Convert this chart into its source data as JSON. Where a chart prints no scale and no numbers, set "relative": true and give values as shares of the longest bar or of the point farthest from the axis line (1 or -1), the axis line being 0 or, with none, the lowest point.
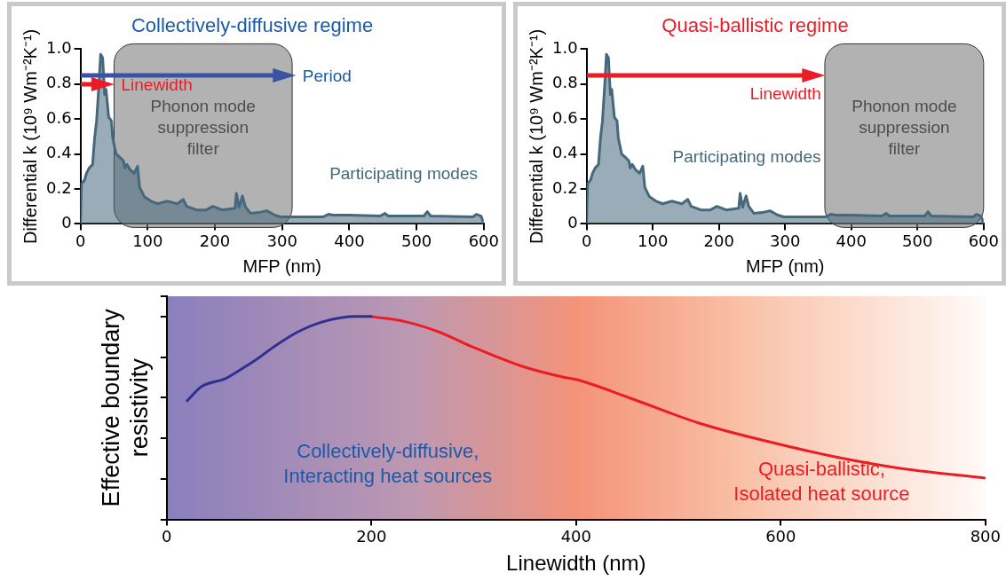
{
  "chart_data": [
    {
      "type": "area",
      "title": "Collectively-diffusive regime",
      "xlabel": "MFP (nm)",
      "ylabel": "Differential k (10⁹ Wm⁻²K⁻¹)",
      "x": [
        0,
        1.5,
        6,
        9,
        13,
        18,
        21,
        24,
        28,
        30,
        33,
        36,
        38,
        42,
        46,
        48,
        53,
        59,
        64,
        66,
        69,
        74,
        80,
        85,
        88,
        95,
        105,
        115,
        129,
        144,
        153,
        158,
        173,
        187,
        197,
        211,
        230,
        232,
        236,
        241,
        245,
        253,
        265,
        277,
        289,
        298,
        361,
        369,
        376,
        400,
        446,
        453,
        458,
        511,
        516,
        521,
        584,
        589,
        596,
        600
      ],
      "series": [
        {
          "name": "Participating modes",
          "color": "#46687c",
          "values": [
            0.005,
            0.23,
            0.25,
            0.29,
            0.32,
            0.34,
            0.49,
            0.59,
            0.83,
            0.97,
            0.95,
            0.74,
            0.77,
            0.61,
            0.59,
            0.49,
            0.4,
            0.38,
            0.36,
            0.32,
            0.34,
            0.31,
            0.29,
            0.33,
            0.21,
            0.155,
            0.13,
            0.115,
            0.13,
            0.115,
            0.14,
            0.1,
            0.08,
            0.08,
            0.1,
            0.08,
            0.09,
            0.175,
            0.095,
            0.16,
            0.1,
            0.06,
            0.065,
            0.075,
            0.05,
            0.04,
            0.04,
            0.055,
            0.05,
            0.05,
            0.045,
            0.06,
            0.045,
            0.045,
            0.07,
            0.045,
            0.04,
            0.055,
            0.045,
            0.005
          ]
        }
      ],
      "xlim": [
        0,
        600
      ],
      "xticks": [
        0,
        100,
        200,
        300,
        400,
        500,
        600
      ],
      "ylim": [
        0,
        1
      ],
      "yticks": [
        0,
        0.2,
        0.4,
        0.6,
        0.8,
        {
          "value": 1,
          "label": "1.0"
        }
      ],
      "grid": false,
      "legend": false,
      "bands": [
        {
          "axis": "x",
          "from": 50,
          "to": 315,
          "label": "Phonon mode suppression filter",
          "color": "#7f7f7f"
        }
      ],
      "annotations": [
        {
          "text": "Period",
          "x": 320,
          "y": 0.85
        },
        {
          "text": "Linewidth",
          "x": 50,
          "y": 0.8
        }
      ]
    },
    {
      "type": "area",
      "title": "Quasi-ballistic regime",
      "xlabel": "MFP (nm)",
      "ylabel": "Differential k (10⁹ Wm⁻²K⁻¹)",
      "x": [
        0,
        1.5,
        6,
        9,
        13,
        18,
        21,
        24,
        28,
        30,
        33,
        36,
        38,
        42,
        46,
        48,
        53,
        59,
        64,
        66,
        69,
        74,
        80,
        85,
        88,
        95,
        105,
        115,
        129,
        144,
        153,
        158,
        173,
        187,
        197,
        211,
        230,
        232,
        236,
        241,
        245,
        253,
        265,
        277,
        289,
        298,
        361,
        369,
        376,
        400,
        446,
        453,
        458,
        511,
        516,
        521,
        584,
        589,
        596,
        600
      ],
      "series": [
        {
          "name": "Participating modes",
          "color": "#46687c",
          "values": [
            0.005,
            0.23,
            0.25,
            0.29,
            0.32,
            0.34,
            0.49,
            0.59,
            0.83,
            0.97,
            0.95,
            0.74,
            0.77,
            0.61,
            0.59,
            0.49,
            0.4,
            0.38,
            0.36,
            0.32,
            0.34,
            0.31,
            0.29,
            0.33,
            0.21,
            0.155,
            0.13,
            0.115,
            0.13,
            0.115,
            0.14,
            0.1,
            0.08,
            0.08,
            0.1,
            0.08,
            0.09,
            0.175,
            0.095,
            0.16,
            0.1,
            0.06,
            0.065,
            0.075,
            0.05,
            0.04,
            0.04,
            0.055,
            0.05,
            0.05,
            0.045,
            0.06,
            0.045,
            0.045,
            0.07,
            0.045,
            0.04,
            0.055,
            0.045,
            0.005
          ]
        }
      ],
      "xlim": [
        0,
        600
      ],
      "xticks": [
        0,
        100,
        200,
        300,
        400,
        500,
        600
      ],
      "ylim": [
        0,
        1
      ],
      "yticks": [
        0,
        0.2,
        0.4,
        0.6,
        0.8,
        {
          "value": 1,
          "label": "1.0"
        }
      ],
      "grid": false,
      "legend": false,
      "bands": [
        {
          "axis": "x",
          "from": 360,
          "to": 600,
          "label": "Phonon mode suppression filter",
          "color": "#7f7f7f"
        }
      ],
      "annotations": [
        {
          "text": "Linewidth",
          "x": 360,
          "y": 0.85
        }
      ]
    },
    {
      "type": "line",
      "relative": true,
      "xlabel": "Linewidth (nm)",
      "ylabel": "Effective boundary resistivity",
      "series": [
        {
          "color": "#2e3192",
          "x": [
            20,
            34,
            57,
            71,
            87,
            105,
            128,
            153,
            185,
            200
          ],
          "values": [
            0.585,
            0.655,
            0.694,
            0.735,
            0.786,
            0.852,
            0.924,
            0.975,
            1,
            1
          ]
        },
        {
          "color": "#ed1c24",
          "x": [
            200,
            233,
            266,
            298,
            346,
            389,
            400,
            455,
            520,
            586,
            651,
            717,
            800
          ],
          "values": [
            1,
            0.975,
            0.924,
            0.852,
            0.757,
            0.7,
            0.69,
            0.594,
            0.475,
            0.386,
            0.311,
            0.252,
            0.204
          ]
        }
      ],
      "xlim": [
        0,
        800
      ],
      "xticks": [
        0,
        200,
        400,
        600,
        800
      ],
      "grid": false,
      "legend": false,
      "annotations": [
        "Collectively-diffusive,\nInteracting heat sources",
        "Quasi-ballistic,\nIsolated heat source"
      ]
    }
  ]
}
